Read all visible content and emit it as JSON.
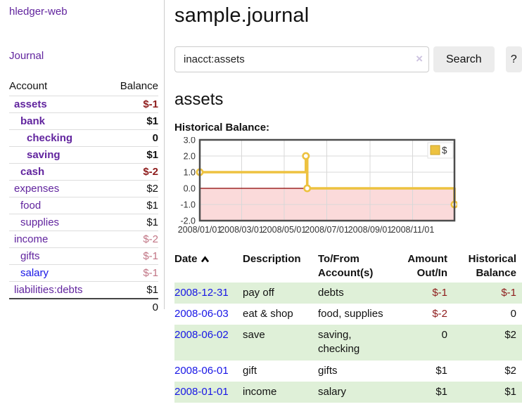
{
  "palette": {
    "link_purple": "#61249e",
    "link_blue": "#1715e6",
    "negative_red": "#8e1c1c",
    "rose_negative": "#c17484",
    "row_stripe_green": "#dff0d8",
    "chart_gold": "#EDC240",
    "chart_zero_line": "#8b0000",
    "chart_negative_fill": "#fbdada"
  },
  "sidebar": {
    "brand": "hledger-web",
    "journal_link": "Journal",
    "accounts_table": {
      "headers": {
        "account": "Account",
        "balance": "Balance"
      },
      "rows": [
        {
          "name": "assets",
          "level": 1,
          "bold": true,
          "link": "purple",
          "value": "$-1",
          "value_style": "neg"
        },
        {
          "name": "bank",
          "level": 2,
          "bold": true,
          "link": "purple",
          "value": "$1",
          "value_style": "plain"
        },
        {
          "name": "checking",
          "level": 3,
          "bold": true,
          "link": "purple",
          "value": "0",
          "value_style": "plain"
        },
        {
          "name": "saving",
          "level": 3,
          "bold": true,
          "link": "purple",
          "value": "$1",
          "value_style": "plain"
        },
        {
          "name": "cash",
          "level": 2,
          "bold": true,
          "link": "purple",
          "value": "$-2",
          "value_style": "neg"
        },
        {
          "name": "expenses",
          "level": 1,
          "bold": false,
          "link": "purple",
          "value": "$2",
          "value_style": "plain"
        },
        {
          "name": "food",
          "level": 2,
          "bold": false,
          "link": "purple",
          "value": "$1",
          "value_style": "plain"
        },
        {
          "name": "supplies",
          "level": 2,
          "bold": false,
          "link": "purple",
          "value": "$1",
          "value_style": "plain"
        },
        {
          "name": "income",
          "level": 1,
          "bold": false,
          "link": "purple",
          "value": "$-2",
          "value_style": "rose"
        },
        {
          "name": "gifts",
          "level": 2,
          "bold": false,
          "link": "purple",
          "value": "$-1",
          "value_style": "rose"
        },
        {
          "name": "salary",
          "level": 2,
          "bold": false,
          "link": "blue",
          "value": "$-1",
          "value_style": "rose"
        },
        {
          "name": "liabilities:debts",
          "level": 1,
          "bold": false,
          "link": "purple",
          "value": "$1",
          "value_style": "plain"
        }
      ],
      "total": "0"
    }
  },
  "main": {
    "title": "sample.journal",
    "search": {
      "value": "inacct:assets",
      "clear_icon": "×",
      "search_button": "Search",
      "help_button": "?"
    },
    "account_heading": "assets",
    "chart_label": "Historical Balance:"
  },
  "chart_data": {
    "type": "line",
    "step": true,
    "title": "Historical Balance",
    "series": [
      {
        "name": "$",
        "color": "#EDC240",
        "points": [
          {
            "x": "2008-01-01",
            "y": 1
          },
          {
            "x": "2008-06-01",
            "y": 2
          },
          {
            "x": "2008-06-03",
            "y": 0
          },
          {
            "x": "2008-12-31",
            "y": -1
          }
        ]
      }
    ],
    "x_range": [
      "2008-01-01",
      "2008-12-31"
    ],
    "ylim": [
      -2,
      3
    ],
    "yticks": [
      3.0,
      2.0,
      1.0,
      0.0,
      -1.0,
      -2.0
    ],
    "xticks": [
      "2008/01/01",
      "2008/03/01",
      "2008/05/01",
      "2008/07/01",
      "2008/09/01",
      "2008/11/01"
    ],
    "grid": true,
    "legend": {
      "label": "$",
      "position": "top-right"
    },
    "zero_line_color": "#8b0000",
    "negative_region_fill": "#fbdada"
  },
  "register": {
    "headers": {
      "date": "Date",
      "description": "Description",
      "accounts": "To/From Account(s)",
      "amount": "Amount Out/In",
      "balance": "Historical Balance"
    },
    "sort": "ascending",
    "rows": [
      {
        "date": "2008-12-31",
        "description": "pay off",
        "accounts": "debts",
        "amount": "$-1",
        "amount_style": "neg",
        "balance": "$-1",
        "balance_style": "neg",
        "striped": true
      },
      {
        "date": "2008-06-03",
        "description": "eat & shop",
        "accounts": "food, supplies",
        "amount": "$-2",
        "amount_style": "neg",
        "balance": "0",
        "balance_style": "plain",
        "striped": false
      },
      {
        "date": "2008-06-02",
        "description": "save",
        "accounts": "saving, checking",
        "amount": "0",
        "amount_style": "plain",
        "balance": "$2",
        "balance_style": "plain",
        "striped": true
      },
      {
        "date": "2008-06-01",
        "description": "gift",
        "accounts": "gifts",
        "amount": "$1",
        "amount_style": "plain",
        "balance": "$2",
        "balance_style": "plain",
        "striped": false
      },
      {
        "date": "2008-01-01",
        "description": "income",
        "accounts": "salary",
        "amount": "$1",
        "amount_style": "plain",
        "balance": "$1",
        "balance_style": "plain",
        "striped": true
      }
    ]
  }
}
